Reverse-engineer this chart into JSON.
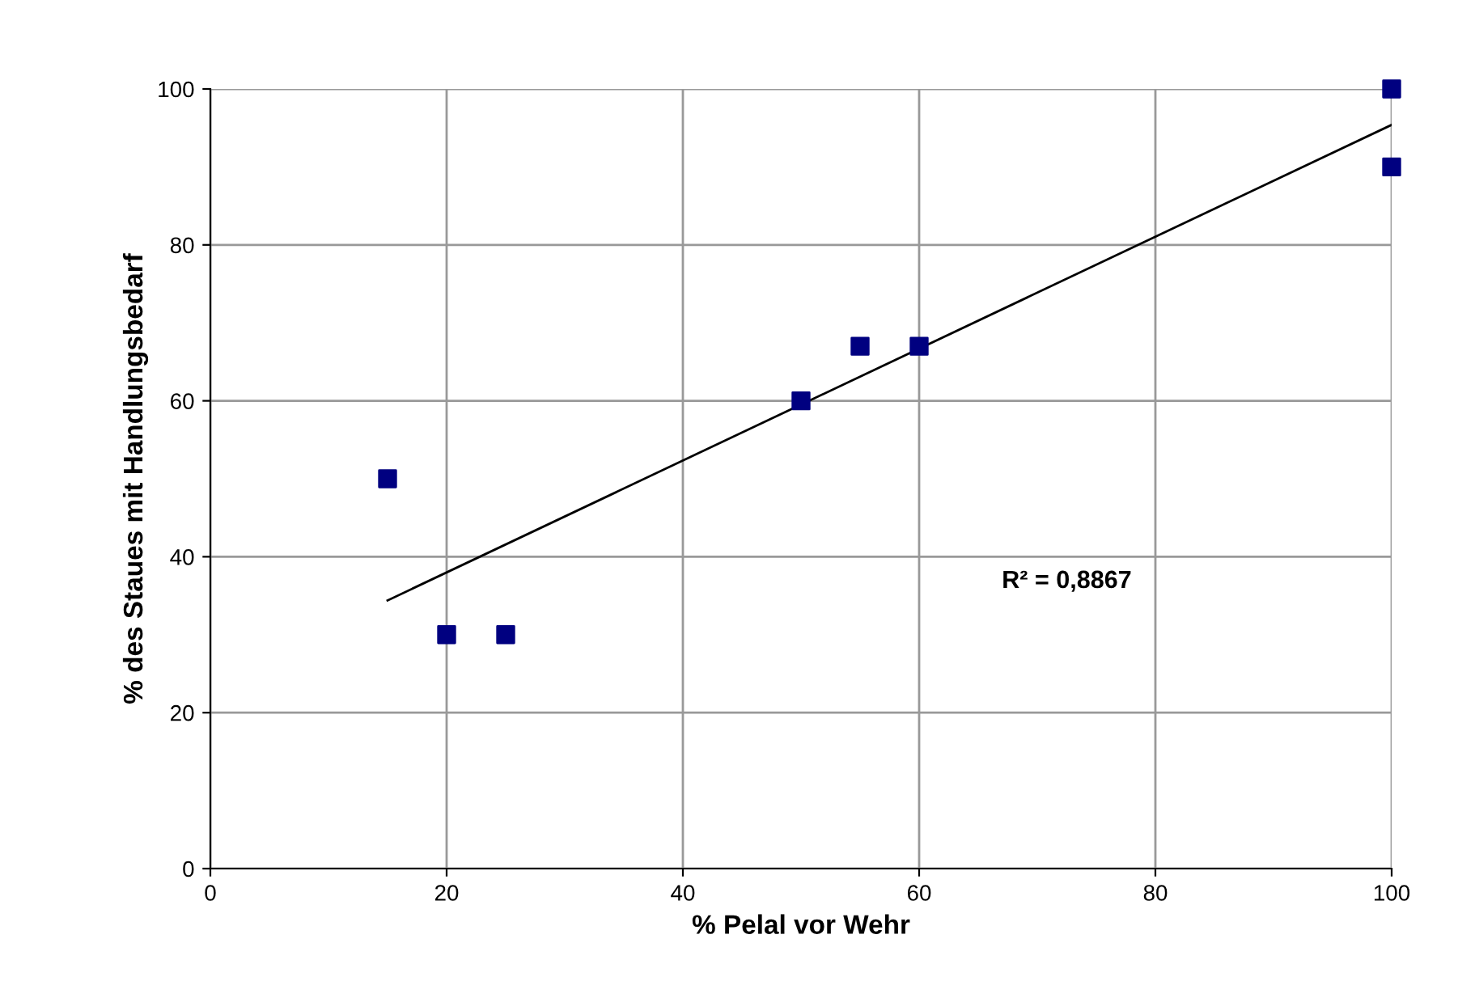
{
  "chart_data": {
    "type": "scatter",
    "xlabel": "% Pelal vor Wehr",
    "ylabel": "% des Staues mit Handlungsbedarf",
    "series": [
      {
        "color": "#000080",
        "marker": "square",
        "x": [
          15,
          20,
          25,
          50,
          55,
          60,
          100,
          100
        ],
        "values": [
          50,
          30,
          30,
          60,
          67,
          67,
          100,
          90
        ]
      },
      {
        "type": "line",
        "color": "#000000",
        "marker": "none",
        "line_style": "solid",
        "x": [
          15,
          100
        ],
        "values": [
          34.4,
          95.4
        ]
      }
    ],
    "xlim": [
      0,
      100
    ],
    "xticks": [
      0,
      20,
      40,
      60,
      80,
      100
    ],
    "ylim": [
      0,
      100
    ],
    "yticks": [
      0,
      20,
      40,
      60,
      80,
      100
    ],
    "grid": true,
    "legend": false,
    "annotations": [
      "R² = 0,8867"
    ]
  }
}
